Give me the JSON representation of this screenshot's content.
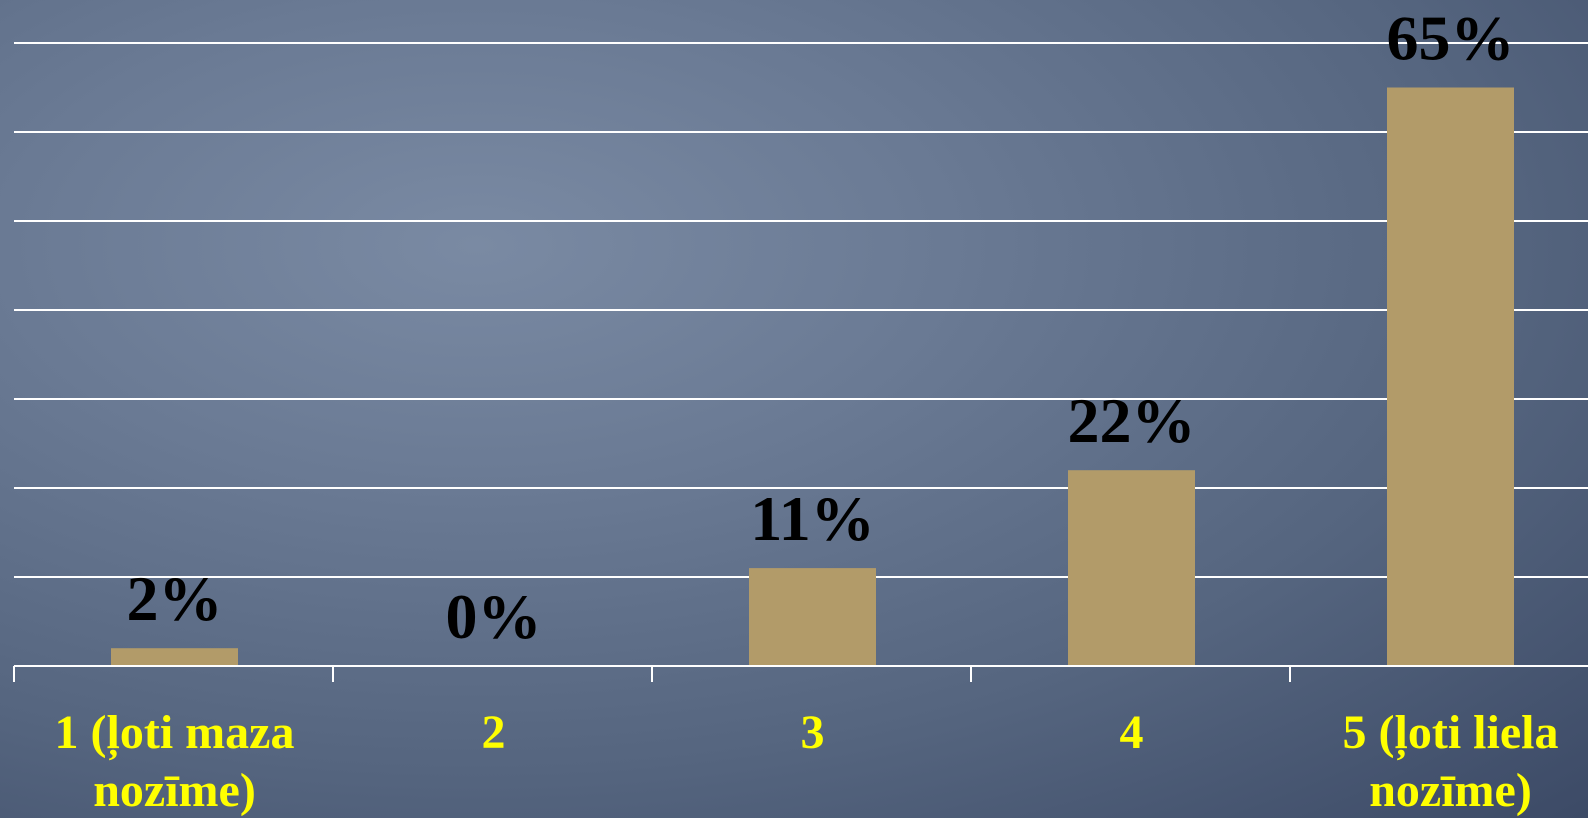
{
  "chart_data": {
    "type": "bar",
    "categories": [
      [
        "1 (ļoti maza",
        "nozīme)"
      ],
      [
        "2"
      ],
      [
        "3"
      ],
      [
        "4"
      ],
      [
        "5 (ļoti liela",
        "nozīme)"
      ]
    ],
    "values": [
      2,
      0,
      11,
      22,
      65
    ],
    "data_labels": [
      "2%",
      "0%",
      "11%",
      "22%",
      "65%"
    ],
    "title": "",
    "xlabel": "",
    "ylabel": "",
    "ylim": [
      0,
      75
    ],
    "y_gridlines_at": [
      10,
      20,
      30,
      40,
      50,
      60,
      70
    ],
    "grid": true,
    "legend": "none",
    "colors": {
      "bar": "#b29b69",
      "data_label": "#000000",
      "category_label": "#ffff00",
      "gridline": "#ffffff"
    }
  }
}
